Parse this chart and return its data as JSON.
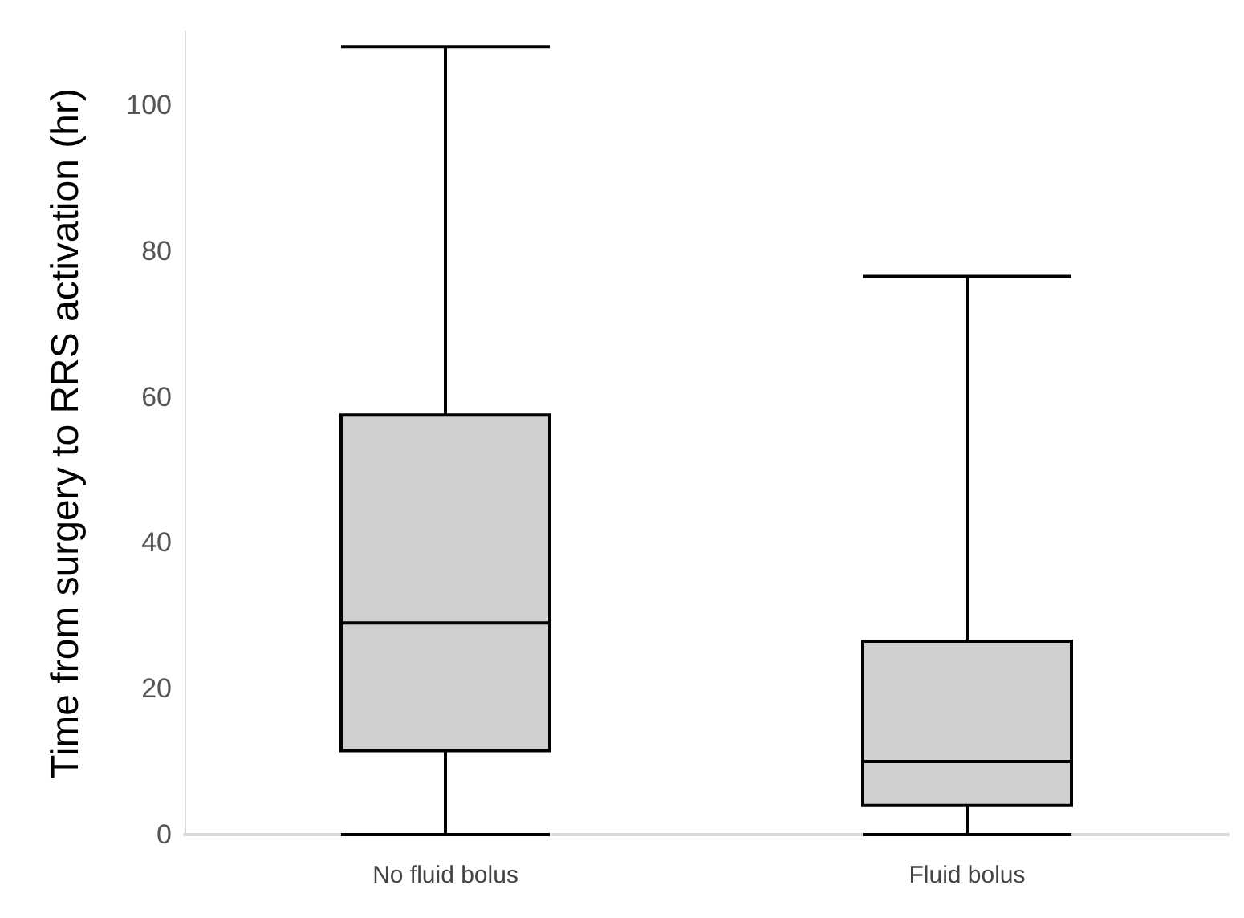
{
  "chart_data": {
    "type": "box",
    "ylabel": "Time from surgery to RRS activation (hr)",
    "categories": [
      "No fluid bolus",
      "Fluid bolus"
    ],
    "boxes": [
      {
        "low": 0,
        "q1": 11.5,
        "median": 29,
        "q3": 57.5,
        "high": 108
      },
      {
        "low": 0,
        "q1": 4,
        "median": 10,
        "q3": 26.5,
        "high": 76.5
      }
    ],
    "color": "#d0cecf",
    "ylim": [
      0,
      110
    ],
    "yticks": [
      0,
      20,
      40,
      60,
      80,
      100
    ],
    "grid": false
  }
}
